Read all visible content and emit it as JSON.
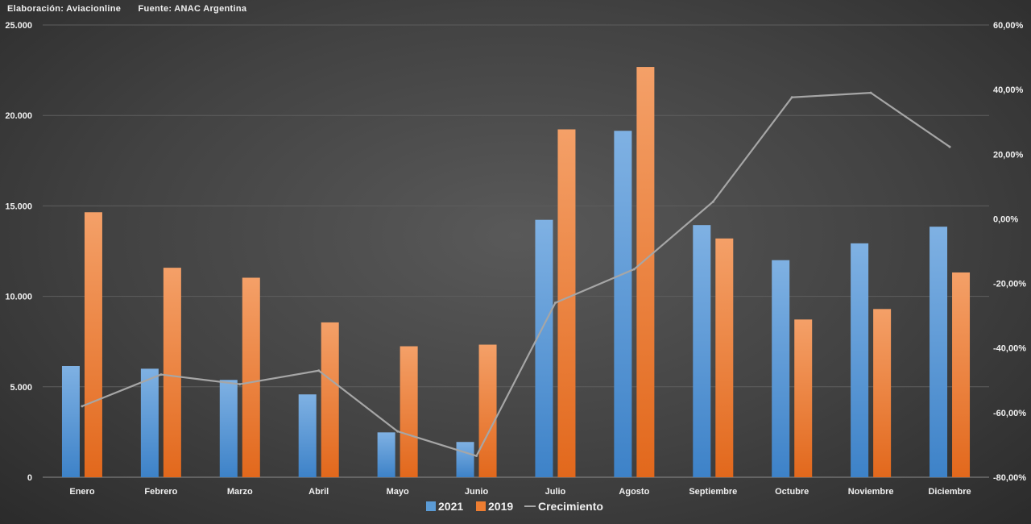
{
  "header": {
    "credit": "Elaboración: Aviacionline",
    "source": "Fuente: ANAC Argentina"
  },
  "chart_data": {
    "type": "bar",
    "categories": [
      "Enero",
      "Febrero",
      "Marzo",
      "Abril",
      "Mayo",
      "Junio",
      "Julio",
      "Agosto",
      "Septiembre",
      "Octubre",
      "Noviembre",
      "Diciembre"
    ],
    "series": [
      {
        "name": "2021",
        "axis": "left",
        "type": "bar",
        "color": "#5b9bd5",
        "values": [
          6150,
          6000,
          5380,
          4580,
          2480,
          1950,
          14230,
          19150,
          13940,
          12000,
          12930,
          13850
        ]
      },
      {
        "name": "2019",
        "axis": "left",
        "type": "bar",
        "color": "#ed7d31",
        "values": [
          14650,
          11580,
          11030,
          8560,
          7240,
          7330,
          19230,
          22680,
          13200,
          8720,
          9300,
          11320
        ]
      },
      {
        "name": "Crecimiento",
        "axis": "right",
        "type": "line",
        "color": "#a6a6a6",
        "values": [
          -58.0,
          -48.2,
          -51.2,
          -47.0,
          -65.8,
          -73.4,
          -26.0,
          -15.6,
          5.3,
          37.6,
          39.0,
          22.3
        ]
      }
    ],
    "y_left": {
      "min": 0,
      "max": 25000,
      "ticks": [
        "0",
        "5.000",
        "10.000",
        "15.000",
        "20.000",
        "25.000"
      ]
    },
    "y_right": {
      "min": -80,
      "max": 60,
      "ticks": [
        "-80,00%",
        "-60,00%",
        "-40,00%",
        "-20,00%",
        "0,00%",
        "20,00%",
        "40,00%",
        "60,00%"
      ]
    },
    "legend": {
      "position": "bottom",
      "labels": [
        "2021",
        "2019",
        "Crecimiento"
      ]
    },
    "grid": true
  }
}
